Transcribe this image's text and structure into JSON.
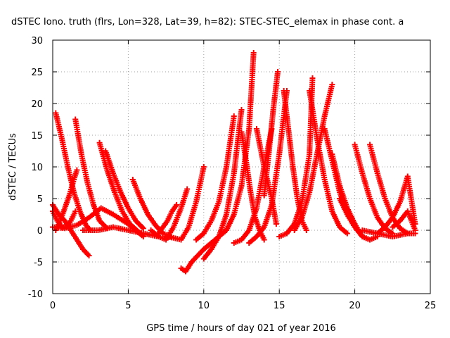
{
  "chart_data": {
    "type": "scatter",
    "title": "dSTEC Iono. truth (flrs, Lon=328, Lat=39, h=82): STEC-STEC_elemax in phase cont. a",
    "xlabel": "GPS time / hours of day 021 of year 2016",
    "ylabel": "dSTEC  / TECUs",
    "xlim": [
      0,
      25
    ],
    "ylim": [
      -10,
      30
    ],
    "xticks": [
      0,
      5,
      10,
      15,
      20,
      25
    ],
    "yticks": [
      -10,
      -5,
      0,
      5,
      10,
      15,
      20,
      25,
      30
    ],
    "xtick_labels": [
      "0",
      "5",
      "10",
      "15",
      "20",
      "25"
    ],
    "ytick_labels": [
      "-10",
      "-5",
      "0",
      "5",
      "10",
      "15",
      "20",
      "25",
      "30"
    ],
    "grid": true,
    "marker": "plus",
    "color": "#ff0000",
    "series": [
      {
        "x": [
          0.2,
          0.6,
          1.0,
          1.4,
          1.8,
          2.2,
          2.5
        ],
        "y": [
          18.5,
          14.5,
          10.0,
          6.0,
          3.0,
          0.8,
          0.0
        ]
      },
      {
        "x": [
          0.0,
          0.4,
          0.8,
          1.2,
          1.6,
          2.0,
          2.4
        ],
        "y": [
          4.0,
          2.5,
          1.5,
          0.0,
          -1.5,
          -3.0,
          -4.0
        ]
      },
      {
        "x": [
          0.0,
          0.3,
          0.6,
          0.9,
          1.2,
          1.5
        ],
        "y": [
          3.0,
          1.5,
          0.5,
          0.5,
          1.5,
          3.0
        ]
      },
      {
        "x": [
          0.2,
          0.5,
          0.8,
          1.1,
          1.4,
          1.6
        ],
        "y": [
          0.0,
          1.5,
          3.5,
          5.5,
          8.0,
          9.5
        ]
      },
      {
        "x": [
          1.5,
          1.9,
          2.3,
          2.7,
          3.1,
          3.6
        ],
        "y": [
          17.5,
          12.0,
          7.5,
          4.0,
          1.5,
          0.3
        ]
      },
      {
        "x": [
          0.0,
          0.8,
          1.6,
          2.4,
          3.2,
          4.0,
          5.0,
          6.0
        ],
        "y": [
          0.5,
          0.3,
          0.8,
          2.0,
          3.5,
          2.5,
          1.0,
          -1.0
        ]
      },
      {
        "x": [
          3.1,
          3.6,
          4.1,
          4.6,
          5.1,
          5.8
        ],
        "y": [
          13.8,
          9.5,
          6.0,
          3.0,
          1.0,
          -0.5
        ]
      },
      {
        "x": [
          3.5,
          4.0,
          4.5,
          5.0,
          5.5,
          6.0
        ],
        "y": [
          12.5,
          9.0,
          6.0,
          3.5,
          1.5,
          0.3
        ]
      },
      {
        "x": [
          5.3,
          5.8,
          6.3,
          6.8,
          7.3,
          7.8
        ],
        "y": [
          8.0,
          5.0,
          2.5,
          0.8,
          -0.5,
          -1.0
        ]
      },
      {
        "x": [
          2.0,
          3.0,
          4.0,
          5.0,
          6.0,
          7.0
        ],
        "y": [
          0.0,
          0.0,
          0.5,
          0.0,
          -0.5,
          -1.0
        ]
      },
      {
        "x": [
          6.5,
          7.0,
          7.5,
          8.0,
          8.5,
          8.9
        ],
        "y": [
          0.0,
          -1.0,
          -1.5,
          0.5,
          3.5,
          6.5
        ]
      },
      {
        "x": [
          7.0,
          7.3,
          7.6,
          7.9,
          8.2
        ],
        "y": [
          -0.5,
          0.5,
          1.5,
          3.0,
          4.0
        ]
      },
      {
        "x": [
          7.5,
          8.0,
          8.5,
          9.0,
          9.5,
          10.0
        ],
        "y": [
          -1.0,
          -1.2,
          -1.5,
          0.5,
          4.5,
          10.0
        ]
      },
      {
        "x": [
          8.5,
          8.8,
          9.2,
          9.6,
          10.0,
          10.5,
          11.0
        ],
        "y": [
          -6.0,
          -6.5,
          -5.0,
          -4.0,
          -3.0,
          -2.0,
          -1.0
        ]
      },
      {
        "x": [
          9.5,
          10.0,
          10.5,
          11.0,
          11.5,
          12.0
        ],
        "y": [
          -1.5,
          -0.5,
          1.5,
          4.5,
          10.0,
          18.0
        ]
      },
      {
        "x": [
          10.0,
          10.5,
          11.0,
          11.5,
          12.0,
          12.5
        ],
        "y": [
          -4.5,
          -3.0,
          -1.0,
          2.5,
          9.0,
          19.0
        ]
      },
      {
        "x": [
          11.0,
          11.5,
          12.0,
          12.5,
          13.0,
          13.3
        ],
        "y": [
          -1.0,
          0.0,
          2.5,
          7.0,
          16.0,
          28.0
        ]
      },
      {
        "x": [
          12.0,
          12.5,
          13.0,
          13.5,
          14.0,
          14.5
        ],
        "y": [
          -2.0,
          -1.5,
          0.0,
          3.5,
          10.0,
          16.0
        ]
      },
      {
        "x": [
          12.5,
          12.8,
          13.1,
          13.4,
          13.7,
          14.0
        ],
        "y": [
          15.5,
          11.0,
          6.0,
          2.0,
          0.0,
          -1.5
        ]
      },
      {
        "x": [
          13.0,
          13.5,
          14.0,
          14.5,
          15.0,
          15.5
        ],
        "y": [
          -2.0,
          -1.0,
          0.5,
          4.0,
          12.0,
          22.0
        ]
      },
      {
        "x": [
          13.5,
          14.0,
          14.5,
          14.8
        ],
        "y": [
          16.0,
          10.0,
          5.0,
          1.0
        ]
      },
      {
        "x": [
          14.0,
          14.3,
          14.6,
          14.9
        ],
        "y": [
          5.5,
          12.0,
          19.0,
          25.0
        ]
      },
      {
        "x": [
          15.3,
          15.6,
          15.9,
          16.2,
          16.5,
          16.8
        ],
        "y": [
          22.0,
          16.0,
          10.0,
          5.0,
          1.5,
          0.0
        ]
      },
      {
        "x": [
          15.0,
          15.5,
          16.0,
          16.5,
          17.0,
          17.2
        ],
        "y": [
          -1.0,
          -0.5,
          1.0,
          4.5,
          12.0,
          24.0
        ]
      },
      {
        "x": [
          16.0,
          16.5,
          17.0,
          17.5,
          18.0,
          18.5
        ],
        "y": [
          0.0,
          2.0,
          6.0,
          12.0,
          18.0,
          23.0
        ]
      },
      {
        "x": [
          17.0,
          17.5,
          18.0,
          18.5,
          19.0,
          19.5
        ],
        "y": [
          22.0,
          14.5,
          8.0,
          3.0,
          0.5,
          -0.5
        ]
      },
      {
        "x": [
          18.0,
          18.5,
          19.0,
          19.5,
          20.0,
          20.5
        ],
        "y": [
          16.0,
          11.0,
          6.0,
          2.5,
          0.5,
          -1.0
        ]
      },
      {
        "x": [
          18.5,
          19.0,
          19.5,
          20.0,
          20.5,
          21.0
        ],
        "y": [
          12.0,
          7.0,
          3.5,
          1.0,
          -1.0,
          -1.5
        ]
      },
      {
        "x": [
          19.0,
          19.5,
          20.0,
          20.5,
          21.0,
          21.5
        ],
        "y": [
          5.0,
          2.5,
          0.5,
          -1.0,
          -1.5,
          -1.0
        ]
      },
      {
        "x": [
          20.0,
          20.5,
          21.0,
          21.5,
          22.0,
          22.5
        ],
        "y": [
          13.5,
          9.0,
          5.0,
          2.0,
          0.3,
          -0.5
        ]
      },
      {
        "x": [
          21.0,
          21.5,
          22.0,
          22.5,
          23.0,
          23.5
        ],
        "y": [
          13.5,
          9.0,
          5.0,
          2.0,
          0.3,
          -0.5
        ]
      },
      {
        "x": [
          21.5,
          22.0,
          22.5,
          23.0,
          23.5,
          24.0
        ],
        "y": [
          -0.5,
          0.5,
          2.0,
          4.5,
          8.5,
          1.0
        ]
      },
      {
        "x": [
          22.5,
          23.0,
          23.5,
          24.0
        ],
        "y": [
          0.5,
          1.5,
          3.0,
          0.0
        ]
      },
      {
        "x": [
          20.5,
          21.5,
          22.5,
          23.5,
          24.0
        ],
        "y": [
          0.0,
          -0.5,
          -1.0,
          -0.5,
          -0.5
        ]
      }
    ]
  }
}
